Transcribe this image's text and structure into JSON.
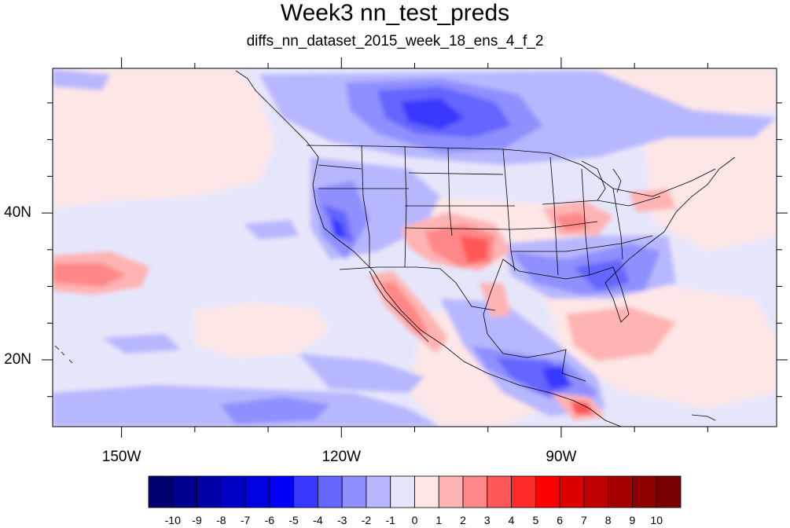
{
  "title": "Week3 nn_test_preds",
  "subtitle": "diffs_nn_dataset_2015_week_18_ens_4_f_2",
  "map": {
    "lat_labels": [
      {
        "lat": 40,
        "text": "40N"
      },
      {
        "lat": 20,
        "text": "20N"
      }
    ],
    "lon_labels": [
      {
        "lon": -150,
        "text": "150W"
      },
      {
        "lon": -120,
        "text": "120W"
      },
      {
        "lon": -90,
        "text": "90W"
      }
    ],
    "extent": {
      "lon_min": -159.4,
      "lon_max": -60.6,
      "lat_min": 10.9,
      "lat_max": 59.7
    }
  },
  "colorbar": {
    "labels": [
      "-10",
      "-9",
      "-8",
      "-7",
      "-6",
      "-5",
      "-4",
      "-3",
      "-2",
      "-1",
      "0",
      "1",
      "2",
      "3",
      "4",
      "5",
      "6",
      "7",
      "8",
      "9",
      "10"
    ],
    "colors": [
      "#00006e",
      "#00008c",
      "#0000a8",
      "#0000c4",
      "#0000e0",
      "#0000fa",
      "#3737ff",
      "#6565ff",
      "#8f8fff",
      "#b7b7ff",
      "#e6e6fb",
      "#fde6e6",
      "#ffb4b4",
      "#ff8787",
      "#ff5757",
      "#ff2a2a",
      "#fa0000",
      "#dc0000",
      "#be0000",
      "#a50000",
      "#8c0000",
      "#780000"
    ]
  },
  "palette": {
    "ocean_base": "#e6e6fb",
    "pos_light": "#fde6e6"
  }
}
